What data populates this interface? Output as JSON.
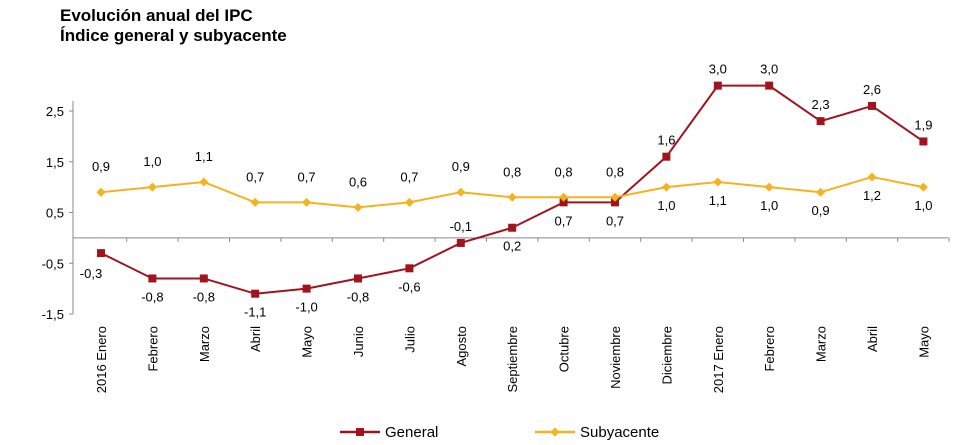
{
  "chart_data": {
    "type": "line",
    "title": "Evolución anual del IPC",
    "subtitle": "Índice general y subyacente",
    "xlabel": "",
    "ylabel": "",
    "ylim": [
      -1.5,
      2.5
    ],
    "y_ticks": [
      "-1,5",
      "-0,5",
      "0,5",
      "1,5",
      "2,5"
    ],
    "categories": [
      "2016 Enero",
      "Febrero",
      "Marzo",
      "Abril",
      "Mayo",
      "Junio",
      "Julio",
      "Agosto",
      "Septiembre",
      "Octubre",
      "Noviembre",
      "Diciembre",
      "2017 Enero",
      "Febrero",
      "Marzo",
      "Abril",
      "Mayo"
    ],
    "legend_position": "bottom",
    "grid": false,
    "series": [
      {
        "name": "General",
        "color": "#a0141e",
        "marker": "square",
        "values": [
          -0.3,
          -0.8,
          -0.8,
          -1.1,
          -1.0,
          -0.8,
          -0.6,
          -0.1,
          0.2,
          0.7,
          0.7,
          1.6,
          3.0,
          3.0,
          2.3,
          2.6,
          1.9
        ],
        "labels": [
          "-0,3",
          "-0,8",
          "-0,8",
          "-1,1",
          "-1,0",
          "-0,8",
          "-0,6",
          "-0,1",
          "0,2",
          "0,7",
          "0,7",
          "1,6",
          "3,0",
          "3,0",
          "2,3",
          "2,6",
          "1,9"
        ]
      },
      {
        "name": "Subyacente",
        "color": "#f5b21e",
        "marker": "diamond",
        "values": [
          0.9,
          1.0,
          1.1,
          0.7,
          0.7,
          0.6,
          0.7,
          0.9,
          0.8,
          0.8,
          0.8,
          1.0,
          1.1,
          1.0,
          0.9,
          1.2,
          1.0
        ],
        "labels": [
          "0,9",
          "1,0",
          "1,1",
          "0,7",
          "0,7",
          "0,6",
          "0,7",
          "0,9",
          "0,8",
          "0,8",
          "0,8",
          "1,0",
          "1,1",
          "1,0",
          "0,9",
          "1,2",
          "1,0"
        ]
      }
    ]
  }
}
